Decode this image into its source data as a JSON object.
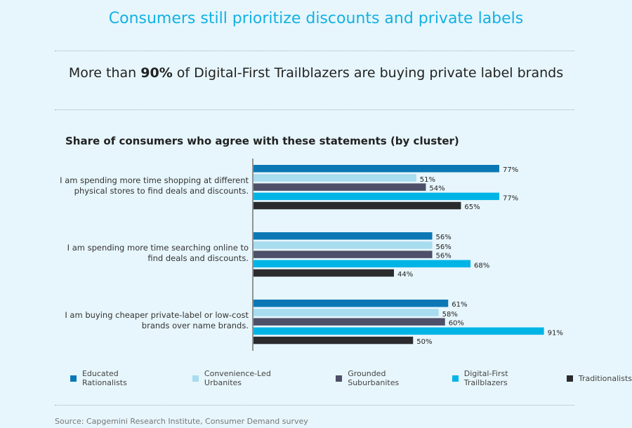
{
  "title": "Consumers still prioritize discounts and private labels",
  "subtitle": {
    "pre": "More than ",
    "bold": "90%",
    "post": " of Digital-First Trailblazers are buying private label brands"
  },
  "source": "Source: Capgemini Research Institute, Consumer Demand survey",
  "chart_data": {
    "type": "bar",
    "orientation": "horizontal",
    "title": "Share of consumers who agree with these statements (by cluster)",
    "categories": [
      [
        "I am spending more time shopping at different",
        "physical stores to find deals and discounts."
      ],
      [
        "I am spending more time searching online to",
        "find deals and discounts."
      ],
      [
        "I am buying cheaper private-label or low-cost",
        "brands over name brands."
      ]
    ],
    "series": [
      {
        "name": "Educated Rationalists",
        "color": "#0b78b5",
        "values": [
          77,
          56,
          61
        ]
      },
      {
        "name": "Convenience-Led Urbanites",
        "color": "#a8dcef",
        "values": [
          51,
          56,
          58
        ]
      },
      {
        "name": "Grounded Suburbanites",
        "color": "#4d5068",
        "values": [
          54,
          56,
          60
        ]
      },
      {
        "name": "Digital-First Trailblazers",
        "color": "#00b5e6",
        "values": [
          77,
          68,
          91
        ]
      },
      {
        "name": "Traditionalists",
        "color": "#2b2b2d",
        "values": [
          65,
          44,
          50
        ]
      }
    ],
    "unit": "%",
    "legend": "bottom",
    "grid": false,
    "xlim": [
      0,
      100
    ]
  }
}
